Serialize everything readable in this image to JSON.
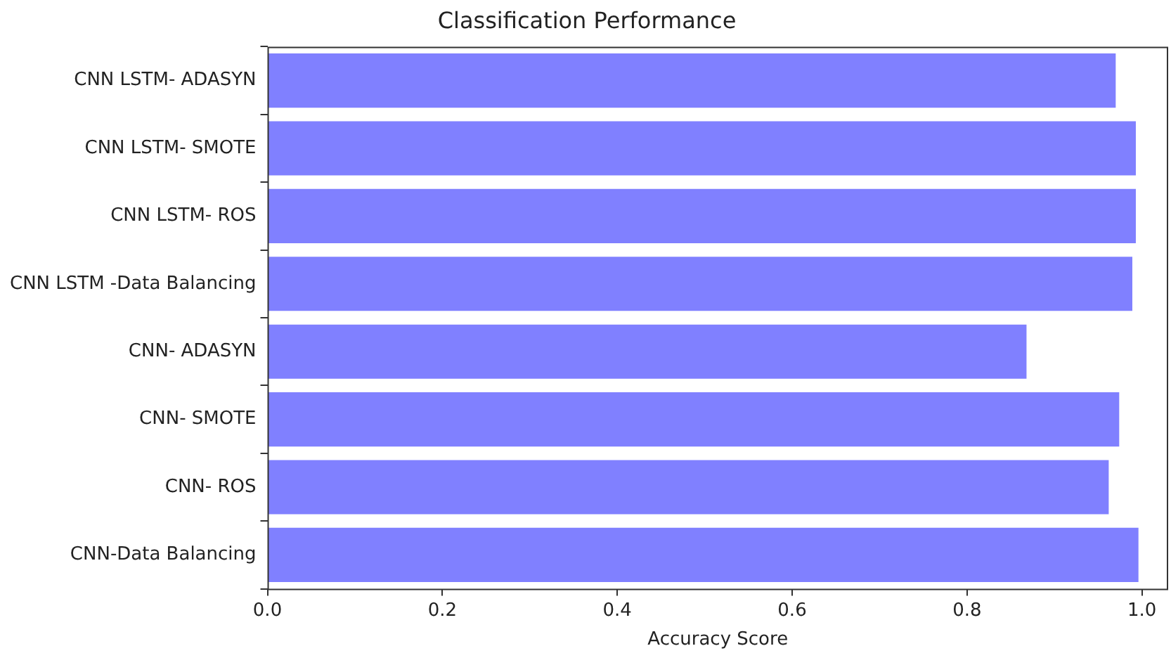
{
  "chart_data": {
    "type": "bar",
    "orientation": "horizontal",
    "title": "Classification Performance",
    "xlabel": "Accuracy Score",
    "categories": [
      "CNN LSTM- ADASYN",
      "CNN LSTM- SMOTE",
      "CNN LSTM- ROS",
      "CNN LSTM -Data Balancing",
      "CNN- ADASYN",
      "CNN- SMOTE",
      "CNN- ROS",
      "CNN-Data Balancing"
    ],
    "values": [
      0.97,
      0.993,
      0.993,
      0.989,
      0.868,
      0.974,
      0.962,
      0.996
    ],
    "color": "#8080ff",
    "xlim": [
      0,
      1.03
    ],
    "xticks": [
      {
        "value": 0,
        "label": "0.0"
      },
      {
        "value": 0.2,
        "label": "0.2"
      },
      {
        "value": 0.4,
        "label": "0.4"
      },
      {
        "value": 0.6,
        "label": "0.6"
      },
      {
        "value": 0.8,
        "label": "0.8"
      },
      {
        "value": 1,
        "label": "1.0"
      }
    ],
    "grid": false,
    "legend": false
  }
}
